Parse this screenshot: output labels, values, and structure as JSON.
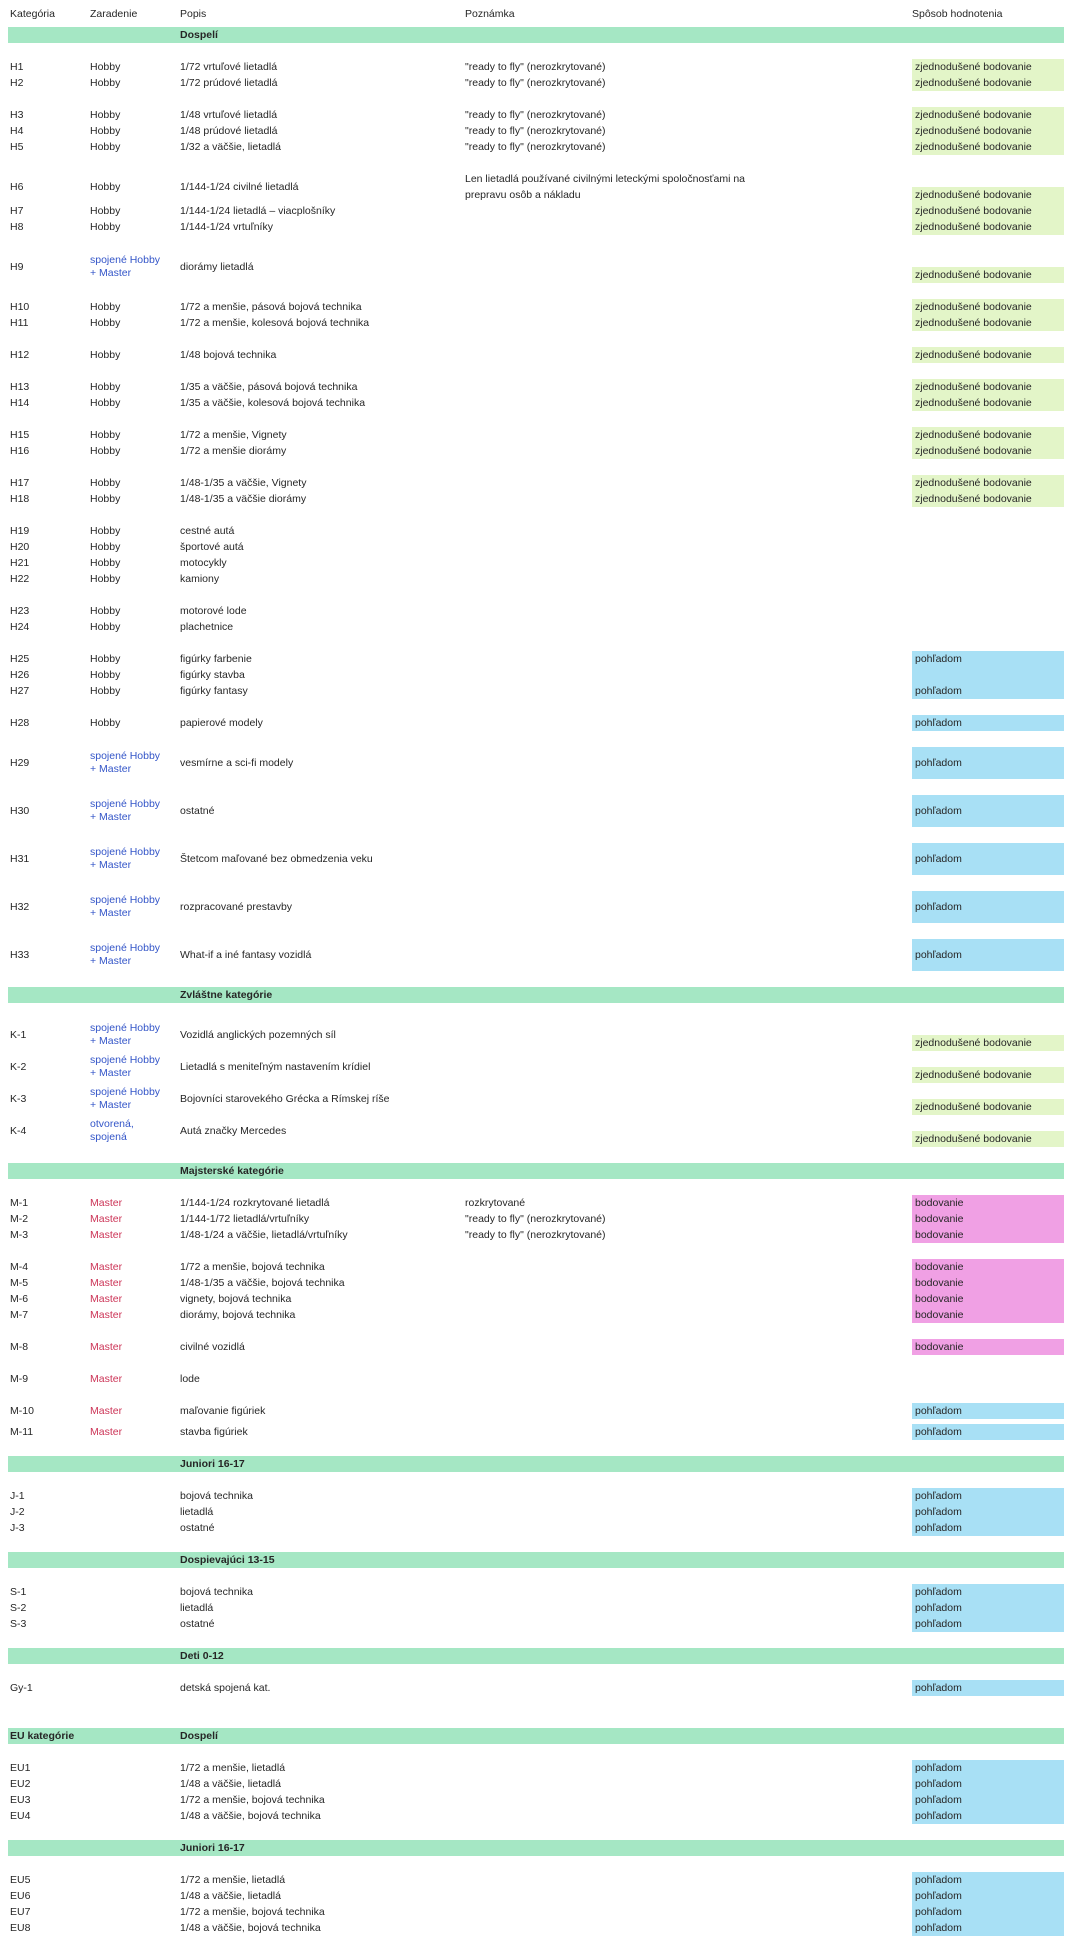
{
  "table": {
    "columns": [
      {
        "key": "kategoria",
        "label": "Kategória"
      },
      {
        "key": "zaradenie",
        "label": "Zaradenie"
      },
      {
        "key": "popis",
        "label": "Popis"
      },
      {
        "key": "poznamka",
        "label": "Poznámka"
      },
      {
        "key": "hodnotenie",
        "label": "Spôsob hodnotenia"
      }
    ],
    "colors": {
      "band_green": "#a5e7c4",
      "cell_green": "#e3f5c8",
      "cell_blue": "#a8e0f5",
      "cell_pink": "#f0a0e4",
      "text_blue": "#3355c8",
      "text_red": "#cc3356",
      "text_body": "#262626"
    },
    "rating_values": {
      "green": "zjednodušené bodovanie",
      "blue": "pohľadom",
      "pink": "bodovanie"
    }
  },
  "sections": [
    {
      "type": "band",
      "left": "",
      "title": "Dospelí",
      "gap": 5
    },
    {
      "type": "group",
      "rows": [
        {
          "id": "H1",
          "zar": "Hobby",
          "popis": "1/72 vrtuľové lietadlá",
          "note": "\"ready to fly\" (nerozkrytované)",
          "rating": "zjednodušené bodovanie",
          "rcolor": "green"
        },
        {
          "id": "H2",
          "zar": "Hobby",
          "popis": "1/72 prúdové lietadlá",
          "note": "\"ready to fly\" (nerozkrytované)",
          "rating": "zjednodušené bodovanie",
          "rcolor": "green"
        }
      ]
    },
    {
      "type": "group",
      "rows": [
        {
          "id": "H3",
          "zar": "Hobby",
          "popis": "1/48 vrtuľové lietadlá",
          "note": "\"ready to fly\" (nerozkrytované)",
          "rating": "zjednodušené bodovanie",
          "rcolor": "green"
        },
        {
          "id": "H4",
          "zar": "Hobby",
          "popis": "1/48 prúdové lietadlá",
          "note": "\"ready to fly\" (nerozkrytované)",
          "rating": "zjednodušené bodovanie",
          "rcolor": "green"
        },
        {
          "id": "H5",
          "zar": "Hobby",
          "popis": "1/32 a väčšie, lietadlá",
          "note": "\"ready to fly\" (nerozkrytované)",
          "rating": "zjednodušené bodovanie",
          "rcolor": "green"
        }
      ]
    },
    {
      "type": "group",
      "rows": [
        {
          "id": "H6",
          "zar": "Hobby",
          "popis": "1/144-1/24 civilné lietadlá",
          "note": "Len lietadlá používané civilnými leteckými spoločnosťami na\nprepravu osôb a nákladu",
          "rating": "zjednodušené bodovanie",
          "rcolor": "green",
          "lines": 2
        },
        {
          "id": "H7",
          "zar": "Hobby",
          "popis": "1/144-1/24 lietadlá – viacplošníky",
          "note": "",
          "rating": "zjednodušené bodovanie",
          "rcolor": "green"
        },
        {
          "id": "H8",
          "zar": "Hobby",
          "popis": "1/144-1/24 vrtuľníky",
          "note": "",
          "rating": "zjednodušené bodovanie",
          "rcolor": "green"
        }
      ]
    },
    {
      "type": "group",
      "rows": [
        {
          "id": "H9",
          "zar": "spojené Hobby\n+ Master",
          "zcolor": "blue",
          "popis": "diorámy lietadlá",
          "note": "",
          "rating": "zjednodušené bodovanie",
          "rcolor": "green",
          "lines": 2
        }
      ]
    },
    {
      "type": "group",
      "rows": [
        {
          "id": "H10",
          "zar": "Hobby",
          "popis": "1/72 a menšie, pásová bojová technika",
          "note": "",
          "rating": "zjednodušené bodovanie",
          "rcolor": "green"
        },
        {
          "id": "H11",
          "zar": "Hobby",
          "popis": "1/72 a menšie, kolesová bojová technika",
          "note": "",
          "rating": "zjednodušené bodovanie",
          "rcolor": "green"
        }
      ]
    },
    {
      "type": "group",
      "rows": [
        {
          "id": "H12",
          "zar": "Hobby",
          "popis": "1/48 bojová technika",
          "note": "",
          "rating": "zjednodušené bodovanie",
          "rcolor": "green"
        }
      ]
    },
    {
      "type": "group",
      "rows": [
        {
          "id": "H13",
          "zar": "Hobby",
          "popis": "1/35 a väčšie, pásová bojová technika",
          "note": "",
          "rating": "zjednodušené bodovanie",
          "rcolor": "green"
        },
        {
          "id": "H14",
          "zar": "Hobby",
          "popis": "1/35 a väčšie, kolesová bojová technika",
          "note": "",
          "rating": "zjednodušené bodovanie",
          "rcolor": "green"
        }
      ]
    },
    {
      "type": "group",
      "rows": [
        {
          "id": "H15",
          "zar": "Hobby",
          "popis": "1/72 a menšie, Vignety",
          "note": "",
          "rating": "zjednodušené bodovanie",
          "rcolor": "green"
        },
        {
          "id": "H16",
          "zar": "Hobby",
          "popis": "1/72 a menšie diorámy",
          "note": "",
          "rating": "zjednodušené bodovanie",
          "rcolor": "green"
        }
      ]
    },
    {
      "type": "group",
      "rows": [
        {
          "id": "H17",
          "zar": "Hobby",
          "popis": "1/48-1/35 a väčšie, Vignety",
          "note": "",
          "rating": "zjednodušené bodovanie",
          "rcolor": "green"
        },
        {
          "id": "H18",
          "zar": "Hobby",
          "popis": "1/48-1/35 a väčšie diorámy",
          "note": "",
          "rating": "zjednodušené bodovanie",
          "rcolor": "green"
        }
      ]
    },
    {
      "type": "group",
      "rows": [
        {
          "id": "H19",
          "zar": "Hobby",
          "popis": "cestné autá",
          "note": ""
        },
        {
          "id": "H20",
          "zar": "Hobby",
          "popis": "športové autá",
          "note": ""
        },
        {
          "id": "H21",
          "zar": "Hobby",
          "popis": "motocykly",
          "note": ""
        },
        {
          "id": "H22",
          "zar": "Hobby",
          "popis": "kamiony",
          "note": ""
        }
      ]
    },
    {
      "type": "group",
      "rows": [
        {
          "id": "H23",
          "zar": "Hobby",
          "popis": "motorové lode",
          "note": ""
        },
        {
          "id": "H24",
          "zar": "Hobby",
          "popis": "plachetnice",
          "note": ""
        }
      ]
    },
    {
      "type": "group",
      "rows": [
        {
          "id": "H25",
          "zar": "Hobby",
          "popis": "figúrky farbenie",
          "note": "",
          "rating": "pohľadom",
          "rcolor": "blue"
        },
        {
          "id": "H26",
          "zar": "Hobby",
          "popis": "figúrky stavba",
          "note": "",
          "rating": "",
          "rcolor": "blue"
        },
        {
          "id": "H27",
          "zar": "Hobby",
          "popis": "figúrky fantasy",
          "note": "",
          "rating": "pohľadom",
          "rcolor": "blue"
        }
      ]
    },
    {
      "type": "group",
      "rows": [
        {
          "id": "H28",
          "zar": "Hobby",
          "popis": "papierové modely",
          "note": "",
          "rating": "pohľadom",
          "rcolor": "blue"
        }
      ]
    },
    {
      "type": "group",
      "rows": [
        {
          "id": "H29",
          "zar": "spojené Hobby\n+ Master",
          "zcolor": "blue",
          "popis": "vesmírne a sci-fi modely",
          "note": "",
          "rating": "pohľadom",
          "rcolor": "blue",
          "lines": 2,
          "tall": true
        }
      ]
    },
    {
      "type": "group",
      "rows": [
        {
          "id": "H30",
          "zar": "spojené Hobby\n+ Master",
          "zcolor": "blue",
          "popis": "ostatné",
          "note": "",
          "rating": "pohľadom",
          "rcolor": "blue",
          "lines": 2,
          "tall": true
        }
      ]
    },
    {
      "type": "group",
      "rows": [
        {
          "id": "H31",
          "zar": "spojené Hobby\n+ Master",
          "zcolor": "blue",
          "popis": "Štetcom maľované bez obmedzenia veku",
          "note": "",
          "rating": "pohľadom",
          "rcolor": "blue",
          "lines": 2,
          "tall": true
        }
      ]
    },
    {
      "type": "group",
      "rows": [
        {
          "id": "H32",
          "zar": "spojené Hobby\n+ Master",
          "zcolor": "blue",
          "popis": "rozpracované prestavby",
          "note": "",
          "rating": "pohľadom",
          "rcolor": "blue",
          "lines": 2,
          "tall": true
        }
      ]
    },
    {
      "type": "group",
      "rows": [
        {
          "id": "H33",
          "zar": "spojené Hobby\n+ Master",
          "zcolor": "blue",
          "popis": "What-if a iné fantasy vozidlá",
          "note": "",
          "rating": "pohľadom",
          "rcolor": "blue",
          "lines": 2,
          "tall": true
        }
      ]
    },
    {
      "type": "band",
      "left": "",
      "title": "Zvláštne kategórie"
    },
    {
      "type": "group",
      "rows": [
        {
          "id": "K-1",
          "zar": "spojené Hobby\n+ Master",
          "zcolor": "blue",
          "popis": "Vozidlá anglických pozemných síl",
          "note": "",
          "rating": "zjednodušené bodovanie",
          "rcolor": "green",
          "lines": 2
        },
        {
          "id": "K-2",
          "zar": "spojené Hobby\n+ Master",
          "zcolor": "blue",
          "popis": "Lietadlá s meniteľným nastavením krídiel",
          "note": "",
          "rating": "zjednodušené bodovanie",
          "rcolor": "green",
          "lines": 2
        },
        {
          "id": "K-3",
          "zar": "spojené Hobby\n+ Master",
          "zcolor": "blue",
          "popis": "Bojovníci starovekého Grécka a Rímskej ríše",
          "note": "",
          "rating": "zjednodušené bodovanie",
          "rcolor": "green",
          "lines": 2
        },
        {
          "id": "K-4",
          "zar": "otvorená,\nspojená",
          "zcolor": "blue",
          "popis": "Autá značky Mercedes",
          "note": "",
          "rating": "zjednodušené bodovanie",
          "rcolor": "green",
          "lines": 2
        }
      ]
    },
    {
      "type": "band",
      "left": "",
      "title": "Majsterské kategórie"
    },
    {
      "type": "group",
      "rows": [
        {
          "id": "M-1",
          "zar": "Master",
          "zcolor": "red",
          "popis": "1/144-1/24 rozkrytované lietadlá",
          "note": "rozkrytované",
          "rating": "bodovanie",
          "rcolor": "pink"
        },
        {
          "id": "M-2",
          "zar": "Master",
          "zcolor": "red",
          "popis": "1/144-1/72 lietadlá/vrtuľníky",
          "note": "\"ready to fly\" (nerozkrytované)",
          "rating": "bodovanie",
          "rcolor": "pink"
        },
        {
          "id": "M-3",
          "zar": "Master",
          "zcolor": "red",
          "popis": "1/48-1/24 a väčšie, lietadlá/vrtuľníky",
          "note": "\"ready to fly\" (nerozkrytované)",
          "rating": "bodovanie",
          "rcolor": "pink"
        }
      ]
    },
    {
      "type": "group",
      "rows": [
        {
          "id": "M-4",
          "zar": "Master",
          "zcolor": "red",
          "popis": "1/72 a menšie, bojová technika",
          "note": "",
          "rating": "bodovanie",
          "rcolor": "pink"
        },
        {
          "id": "M-5",
          "zar": "Master",
          "zcolor": "red",
          "popis": "1/48-1/35 a väčšie, bojová technika",
          "note": "",
          "rating": "bodovanie",
          "rcolor": "pink"
        },
        {
          "id": "M-6",
          "zar": "Master",
          "zcolor": "red",
          "popis": "vignety, bojová technika",
          "note": "",
          "rating": "bodovanie",
          "rcolor": "pink"
        },
        {
          "id": "M-7",
          "zar": "Master",
          "zcolor": "red",
          "popis": "diorámy, bojová technika",
          "note": "",
          "rating": "bodovanie",
          "rcolor": "pink"
        }
      ]
    },
    {
      "type": "group",
      "rows": [
        {
          "id": "M-8",
          "zar": "Master",
          "zcolor": "red",
          "popis": "civilné vozidlá",
          "note": "",
          "rating": "bodovanie",
          "rcolor": "pink"
        }
      ]
    },
    {
      "type": "group",
      "rows": [
        {
          "id": "M-9",
          "zar": "Master",
          "zcolor": "red",
          "popis": "lode",
          "note": ""
        }
      ]
    },
    {
      "type": "group",
      "rows": [
        {
          "id": "M-10",
          "zar": "Master",
          "zcolor": "red",
          "popis": "maľovanie figúriek",
          "note": "",
          "rating": "pohľadom",
          "rcolor": "blue"
        }
      ]
    },
    {
      "type": "group",
      "gap": 5,
      "rows": [
        {
          "id": "M-11",
          "zar": "Master",
          "zcolor": "red",
          "popis": "stavba figúriek",
          "note": "",
          "rating": "pohľadom",
          "rcolor": "blue"
        }
      ]
    },
    {
      "type": "band",
      "left": "",
      "title": "Juniori 16-17"
    },
    {
      "type": "group",
      "rows": [
        {
          "id": "J-1",
          "zar": "",
          "popis": "bojová technika",
          "note": "",
          "rating": "pohľadom",
          "rcolor": "blue"
        },
        {
          "id": "J-2",
          "zar": "",
          "popis": "lietadlá",
          "note": "",
          "rating": "pohľadom",
          "rcolor": "blue"
        },
        {
          "id": "J-3",
          "zar": "",
          "popis": "ostatné",
          "note": "",
          "rating": "pohľadom",
          "rcolor": "blue"
        }
      ]
    },
    {
      "type": "band",
      "left": "",
      "title": "Dospievajúci 13-15"
    },
    {
      "type": "group",
      "rows": [
        {
          "id": "S-1",
          "zar": "",
          "popis": "bojová technika",
          "note": "",
          "rating": "pohľadom",
          "rcolor": "blue"
        },
        {
          "id": "S-2",
          "zar": "",
          "popis": "lietadlá",
          "note": "",
          "rating": "pohľadom",
          "rcolor": "blue"
        },
        {
          "id": "S-3",
          "zar": "",
          "popis": "ostatné",
          "note": "",
          "rating": "pohľadom",
          "rcolor": "blue"
        }
      ]
    },
    {
      "type": "band",
      "left": "",
      "title": "Deti 0-12"
    },
    {
      "type": "group",
      "rows": [
        {
          "id": "Gy-1",
          "zar": "",
          "popis": "detská spojená kat.",
          "note": "",
          "rating": "pohľadom",
          "rcolor": "blue"
        }
      ]
    },
    {
      "type": "band",
      "left": "EU kategórie",
      "title": "Dospelí",
      "gap": 32
    },
    {
      "type": "group",
      "rows": [
        {
          "id": "EU1",
          "zar": "",
          "popis": "1/72 a menšie, lietadlá",
          "note": "",
          "rating": "pohľadom",
          "rcolor": "blue"
        },
        {
          "id": "EU2",
          "zar": "",
          "popis": "1/48 a väčšie, lietadlá",
          "note": "",
          "rating": "pohľadom",
          "rcolor": "blue"
        },
        {
          "id": "EU3",
          "zar": "",
          "popis": "1/72 a menšie, bojová technika",
          "note": "",
          "rating": "pohľadom",
          "rcolor": "blue"
        },
        {
          "id": "EU4",
          "zar": "",
          "popis": "1/48 a väčšie, bojová technika",
          "note": "",
          "rating": "pohľadom",
          "rcolor": "blue"
        }
      ]
    },
    {
      "type": "band",
      "left": "",
      "title": "Juniori 16-17"
    },
    {
      "type": "group",
      "rows": [
        {
          "id": "EU5",
          "zar": "",
          "popis": "1/72 a menšie, lietadlá",
          "note": "",
          "rating": "pohľadom",
          "rcolor": "blue"
        },
        {
          "id": "EU6",
          "zar": "",
          "popis": "1/48 a väčšie, lietadlá",
          "note": "",
          "rating": "pohľadom",
          "rcolor": "blue"
        },
        {
          "id": "EU7",
          "zar": "",
          "popis": "1/72 a menšie, bojová technika",
          "note": "",
          "rating": "pohľadom",
          "rcolor": "blue"
        },
        {
          "id": "EU8",
          "zar": "",
          "popis": "1/48 a väčšie, bojová technika",
          "note": "",
          "rating": "pohľadom",
          "rcolor": "blue"
        }
      ]
    }
  ]
}
